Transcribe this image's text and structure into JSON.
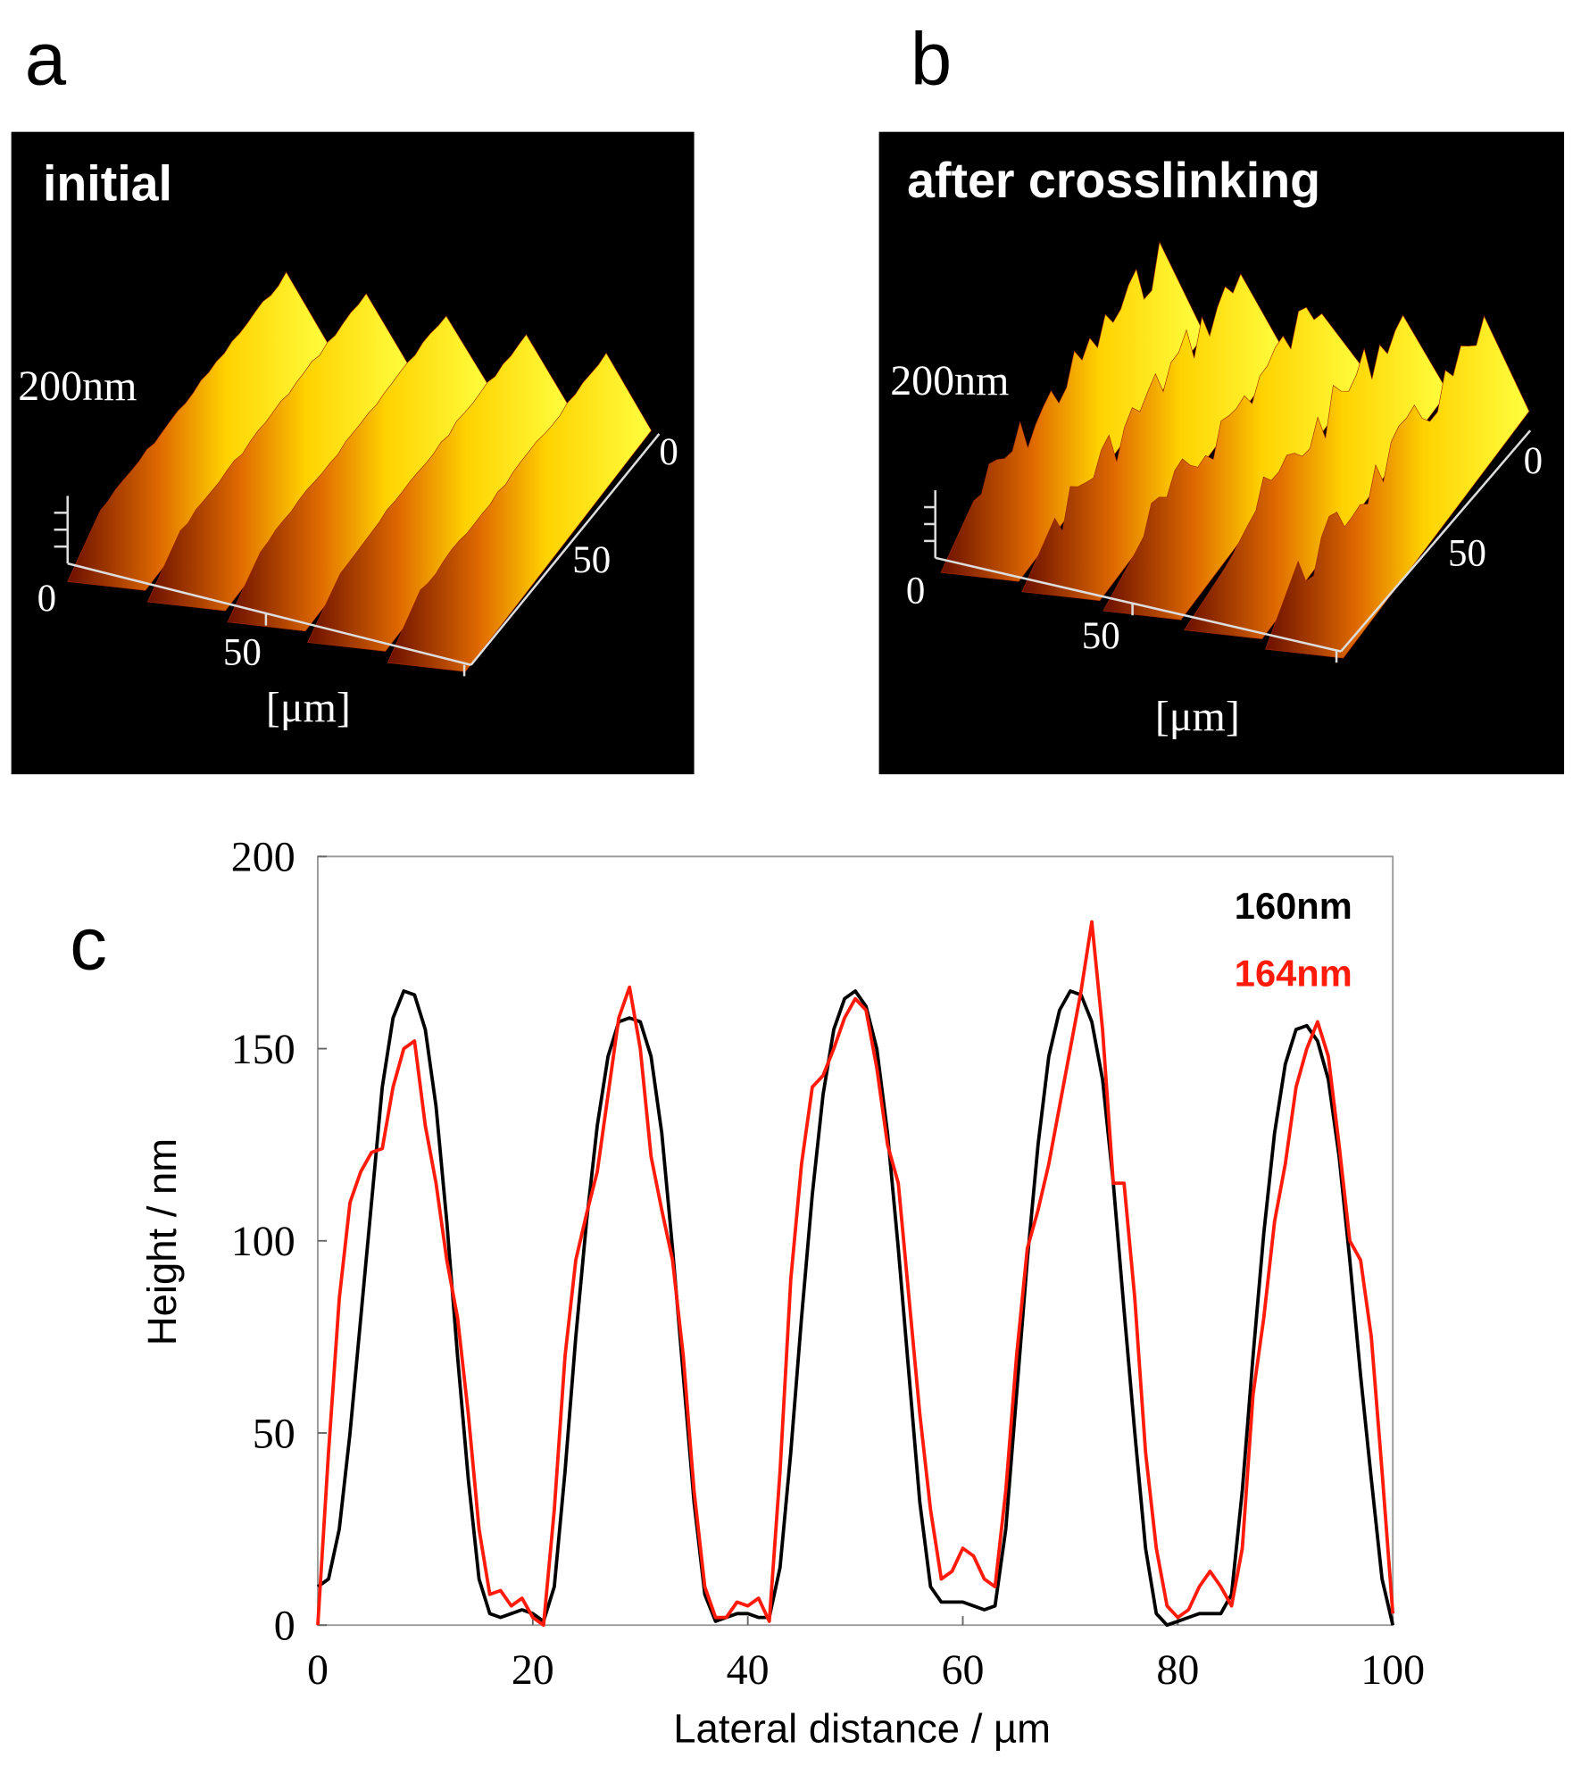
{
  "panels": [
    {
      "letter": "a",
      "title": "initial",
      "z_label": "200nm",
      "origin": "0",
      "x_mid": "50",
      "y_start": "0",
      "y_mid": "50",
      "unit": "[μm]"
    },
    {
      "letter": "b",
      "title": "after crosslinking",
      "z_label": "200nm",
      "origin": "0",
      "x_mid": "50",
      "y_start": "0",
      "y_mid": "50",
      "unit": "[μm]"
    }
  ],
  "chart_data": {
    "type": "line",
    "panel_label": "c",
    "x_label": "Lateral distance / µm",
    "y_label": "Height / nm",
    "xlim": [
      0,
      100
    ],
    "xticks": [
      0,
      20,
      40,
      60,
      80,
      100
    ],
    "ylim": [
      0,
      200
    ],
    "yticks": [
      0,
      50,
      100,
      150,
      200
    ],
    "x": [
      0,
      1,
      2,
      3,
      4,
      5,
      6,
      7,
      8,
      9,
      10,
      11,
      12,
      13,
      14,
      15,
      16,
      17,
      18,
      19,
      20,
      21,
      22,
      23,
      24,
      25,
      26,
      27,
      28,
      29,
      30,
      31,
      32,
      33,
      34,
      35,
      36,
      37,
      38,
      39,
      40,
      41,
      42,
      43,
      44,
      45,
      46,
      47,
      48,
      49,
      50,
      51,
      52,
      53,
      54,
      55,
      56,
      57,
      58,
      59,
      60,
      61,
      62,
      63,
      64,
      65,
      66,
      67,
      68,
      69,
      70,
      71,
      72,
      73,
      74,
      75,
      76,
      77,
      78,
      79,
      80,
      81,
      82,
      83,
      84,
      85,
      86,
      87,
      88,
      89,
      90,
      91,
      92,
      93,
      94,
      95,
      96,
      97,
      98,
      99,
      100
    ],
    "series": [
      {
        "name": "160nm",
        "color": "#000000",
        "values": [
          10,
          12,
          25,
          50,
          80,
          110,
          140,
          158,
          165,
          164,
          155,
          135,
          105,
          70,
          38,
          12,
          3,
          2,
          3,
          4,
          3,
          1,
          10,
          40,
          75,
          105,
          130,
          148,
          157,
          158,
          157,
          148,
          128,
          98,
          65,
          32,
          8,
          1,
          2,
          3,
          3,
          2,
          2,
          15,
          45,
          80,
          112,
          138,
          155,
          163,
          165,
          161,
          150,
          128,
          98,
          65,
          32,
          10,
          6,
          6,
          6,
          5,
          4,
          5,
          25,
          60,
          95,
          125,
          148,
          160,
          165,
          164,
          157,
          142,
          115,
          82,
          50,
          20,
          3,
          0,
          1,
          2,
          3,
          3,
          3,
          8,
          35,
          70,
          102,
          128,
          146,
          155,
          156,
          152,
          142,
          122,
          95,
          65,
          38,
          12,
          0
        ]
      },
      {
        "name": "164nm",
        "color": "#ff1a0a",
        "values": [
          0,
          45,
          85,
          110,
          118,
          123,
          124,
          140,
          150,
          152,
          130,
          115,
          95,
          80,
          55,
          25,
          8,
          9,
          5,
          7,
          2,
          0,
          30,
          70,
          95,
          107,
          118,
          138,
          158,
          166,
          150,
          122,
          108,
          95,
          70,
          35,
          10,
          2,
          2,
          6,
          5,
          7,
          1,
          40,
          90,
          120,
          140,
          143,
          150,
          158,
          163,
          160,
          145,
          125,
          115,
          85,
          55,
          30,
          12,
          14,
          20,
          18,
          12,
          10,
          35,
          70,
          98,
          108,
          120,
          135,
          150,
          165,
          183,
          155,
          115,
          115,
          85,
          45,
          20,
          5,
          2,
          4,
          10,
          14,
          10,
          5,
          20,
          60,
          80,
          105,
          120,
          140,
          150,
          157,
          148,
          125,
          100,
          95,
          75,
          40,
          3
        ]
      }
    ]
  }
}
